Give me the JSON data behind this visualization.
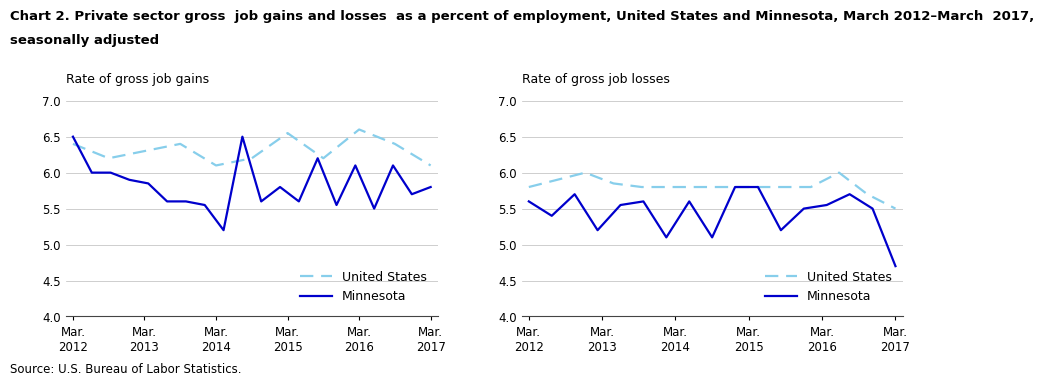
{
  "title_line1": "Chart 2. Private sector gross  job gains and losses  as a percent of employment, United States and Minnesota, March 2012–March  2017,",
  "title_line2": "seasonally adjusted",
  "left_ylabel": "Rate of gross job gains",
  "right_ylabel": "Rate of gross job losses",
  "source": "Source: U.S. Bureau of Labor Statistics.",
  "x_years": [
    2012,
    2013,
    2014,
    2015,
    2016,
    2017
  ],
  "gains_us_y": [
    6.4,
    6.2,
    6.3,
    6.4,
    6.1,
    6.2,
    6.55,
    6.2,
    6.6,
    6.4,
    6.1
  ],
  "gains_mn_y": [
    6.5,
    6.0,
    6.0,
    5.9,
    5.85,
    5.6,
    5.6,
    5.55,
    5.2,
    6.5,
    5.6,
    5.8,
    5.6,
    6.2,
    5.55,
    6.1,
    5.5,
    6.1,
    5.7,
    5.8
  ],
  "losses_us_y": [
    5.8,
    5.9,
    6.0,
    5.85,
    5.8,
    5.8,
    5.8,
    5.8,
    5.8,
    5.8,
    5.8,
    6.0,
    5.7,
    5.5
  ],
  "losses_mn_y": [
    5.6,
    5.4,
    5.7,
    5.2,
    5.55,
    5.6,
    5.1,
    5.6,
    5.1,
    5.8,
    5.8,
    5.2,
    5.5,
    5.55,
    5.7,
    5.5,
    4.7
  ],
  "ylim": [
    4.0,
    7.0
  ],
  "yticks": [
    4.0,
    4.5,
    5.0,
    5.5,
    6.0,
    6.5,
    7.0
  ],
  "us_color": "#87CEEB",
  "mn_color": "#0000CC",
  "lw": 1.6,
  "title_fs": 9.5,
  "label_fs": 9.0,
  "tick_fs": 8.5,
  "legend_fs": 9.0,
  "source_fs": 8.5
}
